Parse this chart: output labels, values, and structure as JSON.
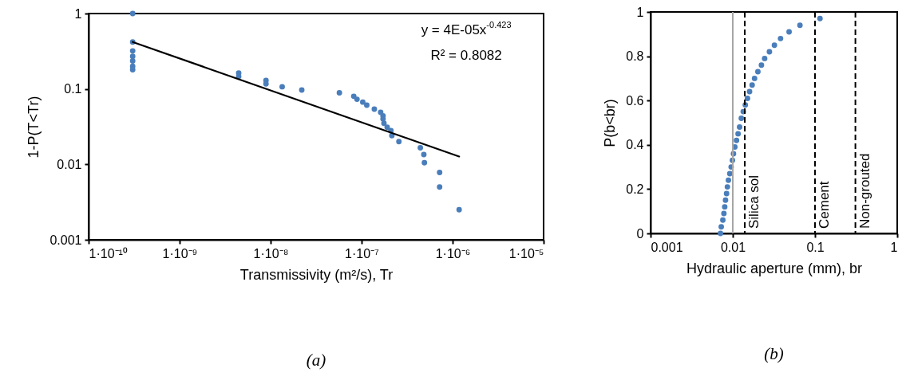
{
  "chart_data": [
    {
      "type": "scatter",
      "title": "(a)",
      "xlabel": "Transmissivity (m²/s), Tr",
      "ylabel": "1-P(T<Tr)",
      "log": "xy",
      "grid": false,
      "marker": "circle",
      "xlim": [
        1e-10,
        1e-05
      ],
      "xticks": [
        {
          "value": 1e-10,
          "label": "1·10⁻¹⁰"
        },
        {
          "value": 1e-09,
          "label": "1·10⁻⁹"
        },
        {
          "value": 1e-08,
          "label": "1·10⁻⁸"
        },
        {
          "value": 1e-07,
          "label": "1·10⁻⁷"
        },
        {
          "value": 1e-06,
          "label": "1·10⁻⁶"
        },
        {
          "value": 1e-05,
          "label": "1·10⁻⁵"
        }
      ],
      "ylim": [
        0.001,
        1
      ],
      "yticks": [
        0.001,
        0.01,
        0.1,
        1
      ],
      "annotations": [
        "y = 4E-05x$^{-0.423}$",
        "R² = 0.8082"
      ],
      "series": [
        {
          "color": "#4a7ebb",
          "x": [
            3.05e-10,
            3.05e-10,
            3.05e-10,
            3.05e-10,
            3.05e-10,
            3.05e-10,
            3.05e-10,
            4.46e-09,
            4.46e-09,
            8.9e-09,
            8.9e-09,
            1.34e-08,
            2.2e-08,
            5.7e-08,
            8.2e-08,
            8.9e-08,
            1.03e-07,
            1.14e-07,
            1.38e-07,
            1.62e-07,
            1.72e-07,
            1.72e-07,
            1.76e-07,
            1.91e-07,
            2.1e-07,
            2.15e-07,
            2.57e-07,
            4.42e-07,
            4.83e-07,
            4.9e-07,
            7.2e-07,
            7.2e-07,
            1.18e-06
          ],
          "values": [
            1,
            0.42,
            0.32,
            0.27,
            0.235,
            0.2,
            0.18,
            0.162,
            0.146,
            0.13,
            0.117,
            0.107,
            0.097,
            0.089,
            0.08,
            0.073,
            0.067,
            0.061,
            0.054,
            0.049,
            0.044,
            0.04,
            0.035,
            0.031,
            0.028,
            0.024,
            0.02,
            0.0166,
            0.0135,
            0.0105,
            0.0078,
            0.005,
            0.0025
          ]
        },
        {
          "type": "line",
          "marker": "none",
          "color": "#000000",
          "x": [
            3.05e-10,
            1.18e-06
          ],
          "values": [
            0.42,
            0.0127
          ]
        }
      ]
    },
    {
      "type": "scatter",
      "title": "(b)",
      "xlabel": "Hydraulic aperture (mm), br",
      "ylabel": "P(b<br)",
      "log": "x",
      "grid": false,
      "marker": "circle",
      "xlim": [
        0.001,
        1
      ],
      "xticks": [
        0.001,
        0.01,
        0.1,
        1
      ],
      "ylim": [
        0,
        1
      ],
      "yticks": [
        0,
        0.2,
        0.4,
        0.6,
        0.8,
        1
      ],
      "ref_lines": [
        {
          "axis": "x",
          "value": 0.01,
          "color": "#a6a6a6",
          "line_style": "solid"
        },
        {
          "axis": "x",
          "value": 0.014,
          "label": "Silica sol",
          "color": "#000000",
          "line_style": "dashed"
        },
        {
          "axis": "x",
          "value": 0.1,
          "label": "Cement",
          "color": "#000000",
          "line_style": "dashed"
        },
        {
          "axis": "x",
          "value": 0.31,
          "label": "Non-grouted",
          "color": "#000000",
          "line_style": "dashed"
        }
      ],
      "series": [
        {
          "color": "#4a7ebb",
          "x": [
            0.00709,
            0.00724,
            0.00757,
            0.0078,
            0.00798,
            0.00816,
            0.0084,
            0.0086,
            0.00885,
            0.0092,
            0.00955,
            0.0099,
            0.0102,
            0.0106,
            0.0111,
            0.0116,
            0.0121,
            0.0127,
            0.0134,
            0.0142,
            0.0151,
            0.016,
            0.0172,
            0.0184,
            0.0202,
            0.0223,
            0.0244,
            0.0279,
            0.0321,
            0.0381,
            0.0484,
            0.0656,
            0.115
          ],
          "values": [
            0,
            0.03,
            0.06,
            0.09,
            0.12,
            0.15,
            0.18,
            0.21,
            0.24,
            0.27,
            0.3,
            0.33,
            0.36,
            0.39,
            0.42,
            0.45,
            0.48,
            0.52,
            0.55,
            0.58,
            0.61,
            0.64,
            0.67,
            0.7,
            0.73,
            0.76,
            0.79,
            0.82,
            0.85,
            0.88,
            0.91,
            0.94,
            0.97
          ]
        }
      ]
    }
  ]
}
